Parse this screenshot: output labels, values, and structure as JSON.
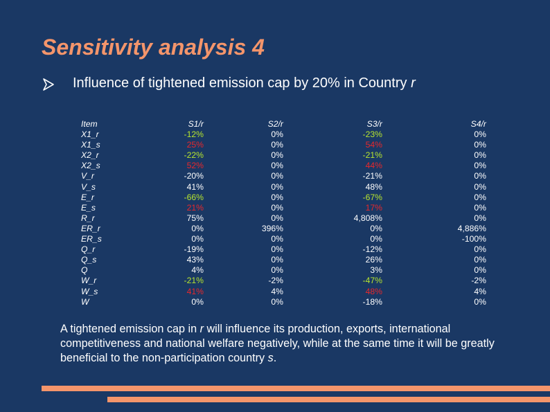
{
  "slide": {
    "title": "Sensitivity analysis 4",
    "bullet": {
      "text": "Influence of tightened emission cap by 20% in Country ",
      "country": "r"
    },
    "summary": {
      "part1": "A tightened emission cap in ",
      "r": "r",
      "part2": " will influence its production, exports, international competitiveness and national welfare negatively, while at the same time it will be greatly beneficial to the non-participation country ",
      "s": "s",
      "part3": "."
    },
    "colors": {
      "background": "#1a3864",
      "accent": "#f4956b",
      "positive_green": "#b8e62e",
      "negative_red": "#e8282b"
    }
  },
  "table": {
    "headers": [
      "Item",
      "S1/r",
      "S2/r",
      "S3/r",
      "S4/r"
    ],
    "rows": [
      {
        "item": "X1_r",
        "s1": "-12%",
        "s2": "0%",
        "s3": "-23%",
        "s4": "0%",
        "c1": "green",
        "c3": "green"
      },
      {
        "item": "X1_s",
        "s1": "25%",
        "s2": "0%",
        "s3": "54%",
        "s4": "0%",
        "c1": "red",
        "c3": "red"
      },
      {
        "item": "X2_r",
        "s1": "-22%",
        "s2": "0%",
        "s3": "-21%",
        "s4": "0%",
        "c1": "green",
        "c3": "green"
      },
      {
        "item": "X2_s",
        "s1": "52%",
        "s2": "0%",
        "s3": "44%",
        "s4": "0%",
        "c1": "red",
        "c3": "red"
      },
      {
        "item": "V_r",
        "s1": "-20%",
        "s2": "0%",
        "s3": "-21%",
        "s4": "0%",
        "c1": "pos",
        "c3": "pos"
      },
      {
        "item": "V_s",
        "s1": "41%",
        "s2": "0%",
        "s3": "48%",
        "s4": "0%",
        "c1": "pos",
        "c3": "pos"
      },
      {
        "item": "E_r",
        "s1": "-66%",
        "s2": "0%",
        "s3": "-67%",
        "s4": "0%",
        "c1": "green",
        "c3": "green"
      },
      {
        "item": "E_s",
        "s1": "21%",
        "s2": "0%",
        "s3": "17%",
        "s4": "0%",
        "c1": "red",
        "c3": "red"
      },
      {
        "item": "R_r",
        "s1": "75%",
        "s2": "0%",
        "s3": "4,808%",
        "s4": "0%",
        "c1": "pos",
        "c3": "pos"
      },
      {
        "item": "ER_r",
        "s1": "0%",
        "s2": "396%",
        "s3": "0%",
        "s4": "4,886%",
        "c1": "pos",
        "c3": "pos"
      },
      {
        "item": "ER_s",
        "s1": "0%",
        "s2": "0%",
        "s3": "0%",
        "s4": "-100%",
        "c1": "pos",
        "c3": "pos"
      },
      {
        "item": "Q_r",
        "s1": "-19%",
        "s2": "0%",
        "s3": "-12%",
        "s4": "0%",
        "c1": "pos",
        "c3": "pos"
      },
      {
        "item": "Q_s",
        "s1": "43%",
        "s2": "0%",
        "s3": "26%",
        "s4": "0%",
        "c1": "pos",
        "c3": "pos"
      },
      {
        "item": "Q",
        "s1": "4%",
        "s2": "0%",
        "s3": "3%",
        "s4": "0%",
        "c1": "pos",
        "c3": "pos"
      },
      {
        "item": "W_r",
        "s1": "-21%",
        "s2": "-2%",
        "s3": "-47%",
        "s4": "-2%",
        "c1": "green",
        "c3": "green"
      },
      {
        "item": "W_s",
        "s1": "41%",
        "s2": "4%",
        "s3": "48%",
        "s4": "4%",
        "c1": "red",
        "c3": "red"
      },
      {
        "item": "W",
        "s1": "0%",
        "s2": "0%",
        "s3": "-18%",
        "s4": "0%",
        "c1": "pos",
        "c3": "pos"
      }
    ]
  }
}
